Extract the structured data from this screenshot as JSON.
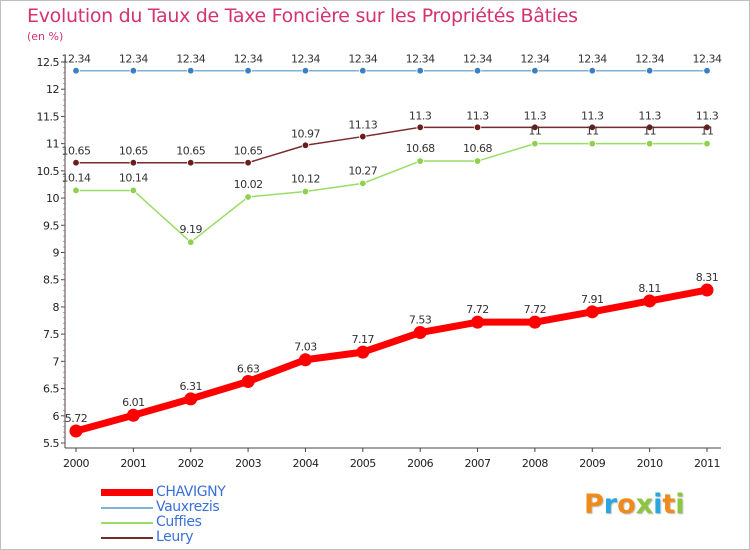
{
  "title": "Evolution du Taux de Taxe Foncière sur les Propriétés Bâties",
  "unit": "(en %)",
  "logo": {
    "text": "Proxiti",
    "letters": [
      {
        "ch": "P",
        "color": "#f08a1c"
      },
      {
        "ch": "r",
        "color": "#2aa6df"
      },
      {
        "ch": "o",
        "color": "#f08a1c"
      },
      {
        "ch": "x",
        "color": "#8cc63f"
      },
      {
        "ch": "i",
        "color": "#2aa6df"
      },
      {
        "ch": "t",
        "color": "#f08a1c"
      },
      {
        "ch": "i",
        "color": "#8cc63f"
      }
    ]
  },
  "chart_data": {
    "type": "line",
    "title": "Evolution du Taux de Taxe Foncière sur les Propriétés Bâties",
    "ylabel": "(en %)",
    "xlabel": "",
    "ylim": [
      5.5,
      12.5
    ],
    "y_ticks": [
      "5.5",
      "6",
      "6.5",
      "7",
      "7.5",
      "8",
      "8.5",
      "9",
      "9.5",
      "10",
      "10.5",
      "11",
      "11.5",
      "12",
      "12.5"
    ],
    "x": [
      "2000",
      "2001",
      "2002",
      "2003",
      "2004",
      "2005",
      "2006",
      "2007",
      "2008",
      "2009",
      "2010",
      "2011"
    ],
    "grid": false,
    "legend_position": "bottom-left",
    "series": [
      {
        "name": "CHAVIGNY",
        "color": "#ff0000",
        "values": [
          5.72,
          6.01,
          6.31,
          6.63,
          7.03,
          7.17,
          7.53,
          7.72,
          7.72,
          7.91,
          8.11,
          8.31
        ],
        "labels": [
          "5.72",
          "6.01",
          "6.31",
          "6.63",
          "7.03",
          "7.17",
          "7.53",
          "7.72",
          "7.72",
          "7.91",
          "8.11",
          "8.31"
        ]
      },
      {
        "name": "Vauxrezis",
        "color": "#7fb3d5",
        "values": [
          12.34,
          12.34,
          12.34,
          12.34,
          12.34,
          12.34,
          12.34,
          12.34,
          12.34,
          12.34,
          12.34,
          12.34
        ],
        "labels": [
          "12.34",
          "12.34",
          "12.34",
          "12.34",
          "12.34",
          "12.34",
          "12.34",
          "12.34",
          "12.34",
          "12.34",
          "12.34",
          "12.34"
        ]
      },
      {
        "name": "Cuffies",
        "color": "#99dd66",
        "values": [
          10.14,
          10.14,
          9.19,
          10.02,
          10.12,
          10.27,
          10.68,
          10.68,
          11,
          11,
          11,
          11
        ],
        "labels": [
          "10.14",
          "10.14",
          "9.19",
          "10.02",
          "10.12",
          "10.27",
          "10.68",
          "10.68",
          "11",
          "11",
          "11",
          "11"
        ]
      },
      {
        "name": "Leury",
        "color": "#7a2a2a",
        "values": [
          10.65,
          10.65,
          10.65,
          10.65,
          10.97,
          11.13,
          11.3,
          11.3,
          11.3,
          11.3,
          11.3,
          11.3
        ],
        "labels": [
          "10.65",
          "10.65",
          "10.65",
          "10.65",
          "10.97",
          "11.13",
          "11.3",
          "11.3",
          "11.3",
          "11.3",
          "11.3",
          "11.3"
        ]
      }
    ]
  }
}
